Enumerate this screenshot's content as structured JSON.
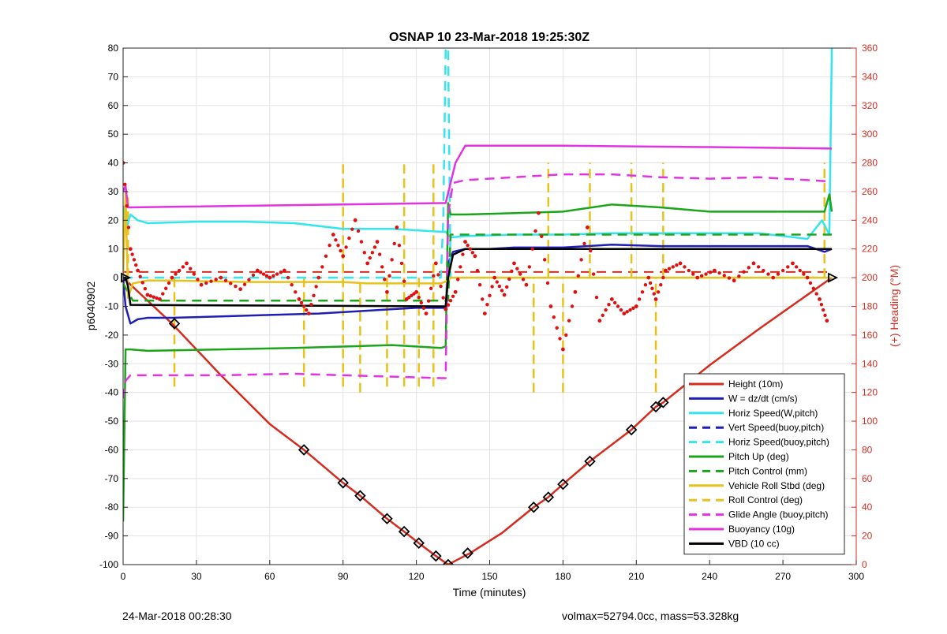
{
  "footer": {
    "left": "24-Mar-2018 00:28:30",
    "right": "volmax=52794.0cc, mass=53.328kg"
  },
  "chart_data": {
    "type": "line",
    "title": "OSNAP 10 23-Mar-2018 19:25:30Z",
    "xlabel": "Time (minutes)",
    "ylabel": "p6040902",
    "y2label": "(+) Heading (°M)",
    "xlim": [
      0,
      300
    ],
    "ylim": [
      -100,
      80
    ],
    "y2lim": [
      0,
      360
    ],
    "xticks": [
      0,
      30,
      60,
      90,
      120,
      150,
      180,
      210,
      240,
      270,
      300
    ],
    "yticks": [
      -100,
      -90,
      -80,
      -70,
      -60,
      -50,
      -40,
      -30,
      -20,
      -10,
      0,
      10,
      20,
      30,
      40,
      50,
      60,
      70,
      80
    ],
    "y2ticks": [
      0,
      20,
      40,
      60,
      80,
      100,
      120,
      140,
      160,
      180,
      200,
      220,
      240,
      260,
      280,
      300,
      320,
      340,
      360
    ],
    "grid": true,
    "legend_position": "bottom-right",
    "colors": {
      "height": "#d62b1f",
      "w": "#1f1fb4",
      "horiz": "#33e5ee",
      "pitch": "#1aa51a",
      "roll": "#e8c21c",
      "glide": "#e233e2",
      "buoy": "#e233e2",
      "vbd": "#000000",
      "heading": "#e01010",
      "right_axis": "#d62b1f"
    },
    "series": [
      {
        "name": "Height (10m)",
        "style": "solid",
        "color": "#d62b1f",
        "x": [
          0,
          20,
          40,
          60,
          74,
          90,
          97,
          108,
          115,
          121,
          128,
          133,
          142,
          155,
          168,
          174,
          180,
          191,
          208,
          218,
          221,
          240,
          260,
          280,
          290
        ],
        "y": [
          0,
          -16,
          -34,
          -51,
          -60,
          -71.5,
          -76,
          -84,
          -88.5,
          -92.5,
          -97,
          -100,
          -96,
          -89,
          -80,
          -76.5,
          -72,
          -64,
          -53,
          -45,
          -43.5,
          -30.5,
          -18,
          -6,
          0
        ]
      },
      {
        "name": "W = dz/dt (cm/s)",
        "style": "solid",
        "color": "#1f1fb4",
        "x": [
          0,
          1,
          3,
          6,
          10,
          20,
          40,
          60,
          80,
          100,
          120,
          132,
          133,
          135,
          140,
          150,
          160,
          180,
          200,
          220,
          240,
          260,
          280,
          287,
          290
        ],
        "y": [
          0,
          -10,
          -16,
          -14.5,
          -14,
          -14,
          -13.5,
          -13,
          -12.5,
          -11.5,
          -10.5,
          -10.5,
          5,
          9,
          10,
          10,
          10.5,
          10.5,
          11.5,
          11,
          11,
          11,
          11,
          9,
          10
        ]
      },
      {
        "name": "Horiz Speed(W,pitch)",
        "style": "solid",
        "color": "#33e5ee",
        "x": [
          0,
          1,
          3,
          6,
          10,
          30,
          50,
          70,
          90,
          110,
          130,
          132,
          134,
          140,
          160,
          180,
          200,
          220,
          240,
          260,
          280,
          286,
          289,
          290
        ],
        "y": [
          25,
          16,
          22,
          20,
          19,
          19.5,
          19.5,
          19,
          17,
          17,
          16,
          16,
          14,
          14.5,
          15,
          15,
          15.5,
          15.5,
          15.5,
          15.5,
          13.5,
          20,
          15,
          80
        ]
      },
      {
        "name": "Vert Speed(buoy,pitch)",
        "style": "dashed",
        "color": "#1f1fb4",
        "x": [],
        "y": []
      },
      {
        "name": "Horiz Speed(buoy,pitch)",
        "style": "dashed",
        "color": "#33e5ee",
        "x": [
          0,
          130,
          131,
          132,
          133,
          134,
          290
        ],
        "y": [
          0,
          0,
          20,
          80,
          80,
          0,
          0
        ]
      },
      {
        "name": "Pitch Up (deg)",
        "style": "solid",
        "color": "#1aa51a",
        "x": [
          0,
          1,
          3,
          10,
          40,
          70,
          90,
          110,
          130,
          132,
          133,
          134,
          140,
          160,
          180,
          200,
          220,
          240,
          260,
          280,
          287,
          289,
          290
        ],
        "y": [
          -85,
          -25,
          -25,
          -25.5,
          -25,
          -24.5,
          -24,
          -23.5,
          -24.5,
          -24,
          26,
          22,
          22,
          22.5,
          23,
          25.5,
          24.5,
          23,
          23,
          23,
          23,
          29,
          23
        ]
      },
      {
        "name": "Pitch Control (mm)",
        "style": "dashed",
        "color": "#1aa51a",
        "x": [
          0,
          4,
          130,
          133,
          134,
          290
        ],
        "y": [
          -2,
          -8,
          -8,
          -8,
          15,
          15
        ]
      },
      {
        "name": "Vehicle Roll Stbd (deg)",
        "style": "solid",
        "color": "#e8c21c",
        "x": [
          0,
          1,
          2,
          4,
          10,
          20,
          50,
          74,
          90,
          100,
          110,
          120,
          130,
          133,
          134,
          150,
          170,
          180,
          200,
          220,
          240,
          260,
          280,
          290
        ],
        "y": [
          0,
          30,
          -7,
          -2,
          -1,
          -1,
          -1.5,
          -1.5,
          -1.5,
          -2,
          -2,
          -2,
          -2,
          -1,
          0,
          0,
          0,
          0,
          0,
          0,
          0,
          0,
          0,
          0
        ]
      },
      {
        "name": "Roll Control (deg)",
        "style": "dashed",
        "color": "#e8c21c",
        "x": [],
        "y": []
      },
      {
        "name": "Glide Angle (buoy,pitch)",
        "style": "dashed",
        "color": "#e233e2",
        "x": [
          0,
          1,
          3,
          10,
          40,
          70,
          90,
          110,
          130,
          132,
          133,
          135,
          140,
          160,
          180,
          200,
          220,
          240,
          260,
          280,
          290
        ],
        "y": [
          -42,
          -36,
          -34,
          -34,
          -34,
          -33.5,
          -34,
          -34.5,
          -35,
          -35,
          22,
          33,
          34,
          35,
          36,
          36,
          35,
          34.5,
          35,
          34,
          33.5
        ]
      },
      {
        "name": "Buoyancy (10g)",
        "style": "solid",
        "color": "#e233e2",
        "x": [
          0,
          1,
          2,
          131,
          132,
          136,
          140,
          180,
          240,
          290
        ],
        "y": [
          30,
          32,
          24.5,
          26,
          26,
          40,
          46,
          46,
          45.5,
          45
        ]
      },
      {
        "name": "VBD (10 cc)",
        "style": "solid",
        "color": "#000000",
        "x": [
          0,
          1,
          2,
          3,
          130,
          132,
          133,
          135,
          140,
          180,
          240,
          290
        ],
        "y": [
          0,
          0,
          -3,
          -9.5,
          -10,
          -10,
          0,
          8,
          10,
          10,
          10,
          10
        ]
      }
    ],
    "heading": {
      "name": "(+) Heading (°M)",
      "axis": "right",
      "color": "#e01010",
      "x": [
        0,
        3,
        6,
        10,
        15,
        20,
        26,
        32,
        40,
        48,
        55,
        60,
        66,
        72,
        76,
        80,
        86,
        90,
        95,
        100,
        104,
        108,
        112,
        116,
        120,
        124,
        128,
        132,
        136,
        140,
        144,
        148,
        152,
        156,
        160,
        165,
        170,
        175,
        180,
        185,
        190,
        195,
        200,
        205,
        210,
        215,
        218,
        222,
        228,
        235,
        242,
        250,
        258,
        266,
        274,
        280,
        285,
        288
      ],
      "y": [
        280,
        220,
        205,
        188,
        185,
        200,
        210,
        195,
        200,
        192,
        205,
        200,
        205,
        185,
        175,
        200,
        230,
        215,
        240,
        210,
        225,
        190,
        235,
        185,
        190,
        175,
        210,
        178,
        190,
        225,
        215,
        175,
        200,
        188,
        210,
        195,
        245,
        180,
        150,
        190,
        235,
        170,
        185,
        175,
        180,
        200,
        185,
        205,
        210,
        200,
        205,
        198,
        210,
        200,
        210,
        200,
        185,
        170
      ]
    },
    "markers": {
      "shape": "diamond",
      "color": "#000000",
      "x": [
        21,
        74,
        90,
        97,
        108,
        115,
        121,
        128,
        133,
        141,
        168,
        174,
        180,
        191,
        208,
        218,
        221
      ],
      "y": [
        -16,
        -60,
        -71.5,
        -76,
        -84,
        -88.5,
        -92.5,
        -97,
        -100,
        -96,
        -80,
        -76.5,
        -72,
        -64,
        -53,
        -45,
        -43.5
      ]
    },
    "spikes": [
      {
        "color": "#e8c21c",
        "x": 2,
        "y": [
          0,
          30
        ]
      },
      {
        "color": "#e8c21c",
        "x": 21,
        "y": [
          -38,
          0
        ]
      },
      {
        "color": "#e8c21c",
        "x": 74,
        "y": [
          -38,
          0
        ]
      },
      {
        "color": "#e8c21c",
        "x": 90,
        "y": [
          -38,
          40
        ]
      },
      {
        "color": "#e8c21c",
        "x": 97,
        "y": [
          -40,
          0
        ]
      },
      {
        "color": "#e8c21c",
        "x": 108,
        "y": [
          -38,
          0
        ]
      },
      {
        "color": "#e8c21c",
        "x": 115,
        "y": [
          -38,
          40
        ]
      },
      {
        "color": "#e8c21c",
        "x": 121,
        "y": [
          -38,
          0
        ]
      },
      {
        "color": "#e8c21c",
        "x": 127,
        "y": [
          -38,
          40
        ]
      },
      {
        "color": "#e8c21c",
        "x": 174,
        "y": [
          0,
          40
        ]
      },
      {
        "color": "#e8c21c",
        "x": 168,
        "y": [
          -40,
          0
        ]
      },
      {
        "color": "#e8c21c",
        "x": 180,
        "y": [
          -40,
          0
        ]
      },
      {
        "color": "#e8c21c",
        "x": 191,
        "y": [
          0,
          40
        ]
      },
      {
        "color": "#e8c21c",
        "x": 208,
        "y": [
          0,
          40
        ]
      },
      {
        "color": "#e8c21c",
        "x": 218,
        "y": [
          -40,
          0
        ]
      },
      {
        "color": "#e8c21c",
        "x": 221,
        "y": [
          0,
          40
        ]
      },
      {
        "color": "#e8c21c",
        "x": 287,
        "y": [
          0,
          40
        ]
      }
    ],
    "reference_lines": [
      {
        "color": "#d62b1f",
        "style": "dashed",
        "y": 2,
        "x": [
          0,
          290
        ]
      }
    ]
  }
}
